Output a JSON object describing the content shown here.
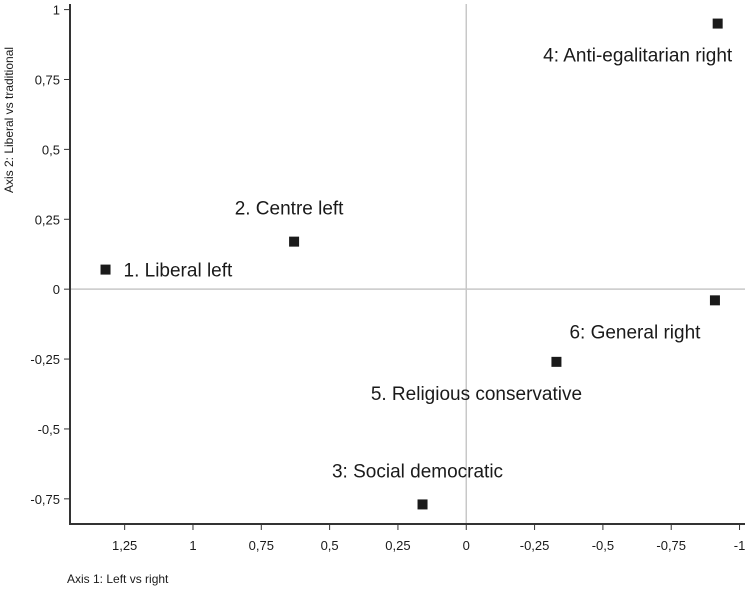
{
  "chart_data": {
    "type": "scatter",
    "title": "",
    "xlabel": "Axis 1: Left vs right",
    "ylabel": "Axis 2: Liberal vs traditional",
    "x_reversed": true,
    "xlim": [
      1.45,
      -1.02
    ],
    "ylim": [
      -0.84,
      1.02
    ],
    "xticks": [
      {
        "value": 1.25,
        "label": "1,25"
      },
      {
        "value": 1,
        "label": "1"
      },
      {
        "value": 0.75,
        "label": "0,75"
      },
      {
        "value": 0.5,
        "label": "0,5"
      },
      {
        "value": 0.25,
        "label": "0,25"
      },
      {
        "value": 0,
        "label": "0"
      },
      {
        "value": -0.25,
        "label": "-0,25"
      },
      {
        "value": -0.5,
        "label": "-0,5"
      },
      {
        "value": -0.75,
        "label": "-0,75"
      },
      {
        "value": -1,
        "label": "-1"
      }
    ],
    "yticks": [
      {
        "value": 1,
        "label": "1"
      },
      {
        "value": 0.75,
        "label": "0,75"
      },
      {
        "value": 0.5,
        "label": "0,5"
      },
      {
        "value": 0.25,
        "label": "0,25"
      },
      {
        "value": 0,
        "label": "0"
      },
      {
        "value": -0.25,
        "label": "-0,25"
      },
      {
        "value": -0.5,
        "label": "-0,5"
      },
      {
        "value": -0.75,
        "label": "-0,75"
      }
    ],
    "grid": false,
    "zero_lines": true,
    "marker_color": "#1a1a1a",
    "axis_color": "#333333",
    "zero_line_color": "#c8c8c8",
    "points": [
      {
        "x": 1.32,
        "y": 0.07,
        "label": "1. Liberal left",
        "label_pos": "right"
      },
      {
        "x": 0.63,
        "y": 0.17,
        "label": "2. Centre left",
        "label_pos": "above"
      },
      {
        "x": 0.16,
        "y": -0.77,
        "label": "3: Social democratic",
        "label_pos": "above"
      },
      {
        "x": -0.92,
        "y": 0.95,
        "label": "4: Anti-egalitarian right",
        "label_pos": "below"
      },
      {
        "x": -0.33,
        "y": -0.26,
        "label": "5. Religious conservative",
        "label_pos": "below"
      },
      {
        "x": -0.91,
        "y": -0.04,
        "label": "6: General right",
        "label_pos": "below"
      }
    ]
  }
}
